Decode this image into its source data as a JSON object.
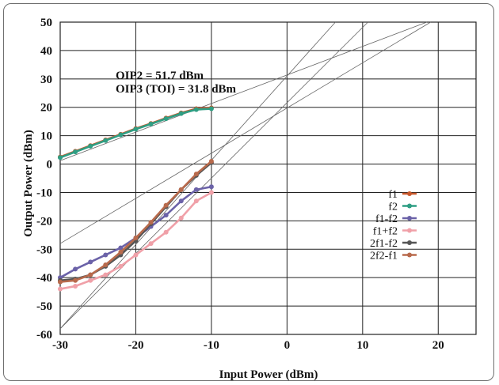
{
  "chart_data": {
    "type": "line",
    "title": "",
    "xlabel": "Input Power (dBm)",
    "ylabel": "Output Power (dBm)",
    "xlim": [
      -30,
      25
    ],
    "ylim": [
      -60,
      50
    ],
    "xticks": [
      -30,
      -20,
      -10,
      0,
      10,
      20
    ],
    "yticks": [
      50,
      40,
      30,
      20,
      10,
      0,
      -10,
      -20,
      -30,
      -40,
      -50,
      -60
    ],
    "xtick_labels": [
      "-30",
      "-20",
      "-10",
      "0",
      "10",
      "20"
    ],
    "ytick_labels": [
      "50",
      "40",
      "30",
      "20",
      "10",
      "0",
      "-10",
      "-20",
      "-30",
      "-40",
      "-50",
      "-60"
    ],
    "grid": true,
    "legend_position": "right",
    "annotations": [
      "OIP2 = 51.7 dBm",
      "OIP3 (TOI) = 31.8 dBm"
    ],
    "series": [
      {
        "name": "f1",
        "color": "#c8582c",
        "x": [
          -30,
          -28,
          -26,
          -24,
          -22,
          -20,
          -18,
          -16,
          -14,
          -12,
          -10
        ],
        "y": [
          2.5,
          4.5,
          6.5,
          8.5,
          10.5,
          12.5,
          14.3,
          16.2,
          18,
          19.5,
          19.8
        ]
      },
      {
        "name": "f2",
        "color": "#2f9e83",
        "x": [
          -30,
          -28,
          -26,
          -24,
          -22,
          -20,
          -18,
          -16,
          -14,
          -12,
          -10
        ],
        "y": [
          2.3,
          4.3,
          6.3,
          8.3,
          10.3,
          12.3,
          14.1,
          16,
          17.8,
          19.2,
          19.5
        ]
      },
      {
        "name": "f1-f2",
        "color": "#6b62a8",
        "x": [
          -30,
          -28,
          -26,
          -24,
          -22,
          -20,
          -18,
          -16,
          -14,
          -12,
          -10
        ],
        "y": [
          -40,
          -37,
          -34.5,
          -32,
          -29.5,
          -26,
          -22,
          -18,
          -13,
          -9,
          -8
        ]
      },
      {
        "name": "f1+f2",
        "color": "#f0a0a8",
        "x": [
          -30,
          -28,
          -26,
          -24,
          -22,
          -20,
          -18,
          -16,
          -14,
          -12,
          -10
        ],
        "y": [
          -44,
          -43,
          -41,
          -39,
          -36,
          -32,
          -28,
          -24,
          -19,
          -13,
          -10
        ]
      },
      {
        "name": "2f1-f2",
        "color": "#555555",
        "x": [
          -30,
          -28,
          -26,
          -24,
          -22,
          -20,
          -18,
          -16,
          -14,
          -12,
          -10
        ],
        "y": [
          -41,
          -40.5,
          -39,
          -36,
          -32,
          -27,
          -21,
          -15,
          -9,
          -4,
          0.5
        ]
      },
      {
        "name": "2f2-f1",
        "color": "#b86a4c",
        "x": [
          -30,
          -28,
          -26,
          -24,
          -22,
          -20,
          -18,
          -16,
          -14,
          -12,
          -10
        ],
        "y": [
          -41.5,
          -41,
          -39,
          -35.5,
          -31,
          -26,
          -20.5,
          -14.5,
          -9,
          -3.5,
          1
        ]
      }
    ],
    "extrapolation_lines": [
      {
        "x": [
          -30,
          18.5
        ],
        "y": [
          1.2,
          50
        ]
      },
      {
        "x": [
          -30,
          19
        ],
        "y": [
          -28,
          50
        ]
      },
      {
        "x": [
          -30,
          10.7
        ],
        "y": [
          -58,
          50
        ]
      },
      {
        "x": [
          -30,
          6.4
        ],
        "y": [
          -58,
          50
        ]
      }
    ]
  }
}
